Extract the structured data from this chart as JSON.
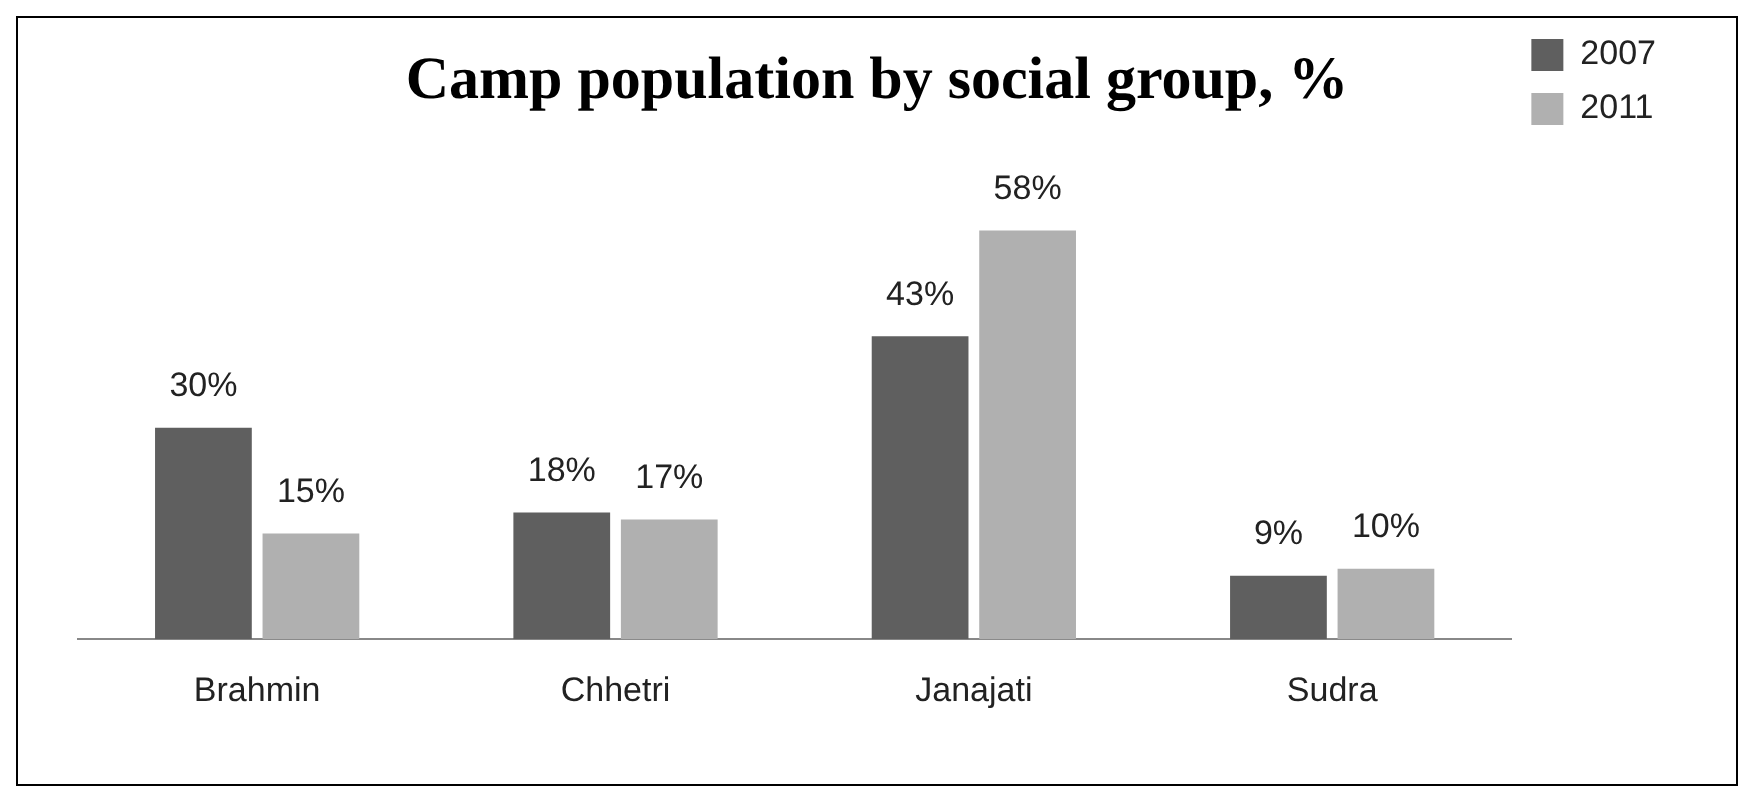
{
  "chart_data": {
    "type": "bar",
    "title": "Camp population by social group, %",
    "categories": [
      "Brahmin",
      "Chhetri",
      "Janajati",
      "Sudra"
    ],
    "series": [
      {
        "name": "2007",
        "color": "#5f5f5f",
        "values": [
          30,
          18,
          43,
          9
        ],
        "value_labels": [
          "30%",
          "18%",
          "43%",
          "9%"
        ]
      },
      {
        "name": "2011",
        "color": "#b0b0b0",
        "values": [
          15,
          17,
          58,
          10
        ],
        "value_labels": [
          "15%",
          "17%",
          "58%",
          "10%"
        ]
      }
    ],
    "legend": "top right",
    "grid": false
  }
}
